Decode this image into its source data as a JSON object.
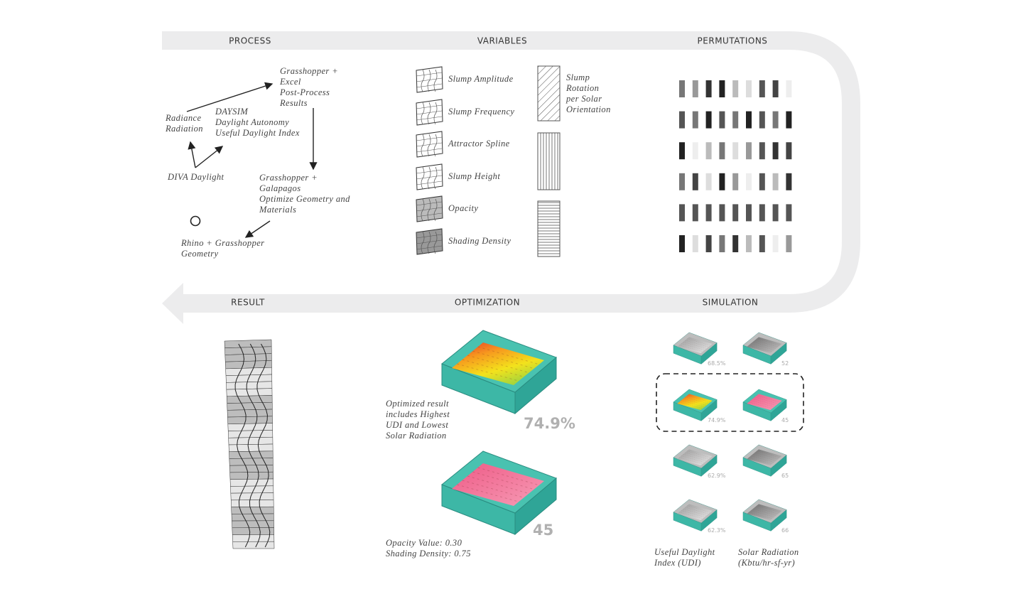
{
  "headers": {
    "process": "PROCESS",
    "variables": "VARIABLES",
    "permutations": "PERMUTATIONS",
    "result": "RESULT",
    "optimization": "OPTIMIZATION",
    "simulation": "SIMULATION"
  },
  "process": {
    "nodes": [
      {
        "lines": [
          "Grasshopper +",
          "Excel",
          "Post-Process",
          "Results"
        ]
      },
      {
        "lines": [
          "Radiance",
          "Radiation"
        ]
      },
      {
        "lines": [
          "DAYSIM",
          "Daylight Autonomy",
          "Useful Daylight Index"
        ]
      },
      {
        "lines": [
          "DIVA Daylight"
        ]
      },
      {
        "lines": [
          "Grasshopper +",
          "Galapagos",
          "Optimize Geometry and",
          "Materials"
        ]
      },
      {
        "lines": [
          "Rhino + Grasshopper",
          "Geometry"
        ]
      }
    ]
  },
  "variables": {
    "items": [
      "Slump Amplitude",
      "Slump Frequency",
      "Attractor Spline",
      "Slump Height",
      "Opacity",
      "Shading Density"
    ],
    "rotation": [
      "Slump",
      "Rotation",
      "per Solar",
      "Orientation"
    ]
  },
  "optimization": {
    "note": [
      "Optimized result",
      "includes Highest",
      "UDI and Lowest",
      "Solar Radiation"
    ],
    "udi": "74.9%",
    "radiation": "45",
    "settings": [
      "Opacity Value: 0.30",
      "Shading Density: 0.75"
    ]
  },
  "simulation": {
    "udi_values": [
      "68.5%",
      "74.9%",
      "62.9%",
      "62.3%"
    ],
    "radiation_values": [
      "52",
      "45",
      "65",
      "66"
    ],
    "udi_label": [
      "Useful Daylight",
      "Index (UDI)"
    ],
    "radiation_label": [
      "Solar Radiation",
      "(Kbtu/hr-sf-yr)"
    ]
  }
}
